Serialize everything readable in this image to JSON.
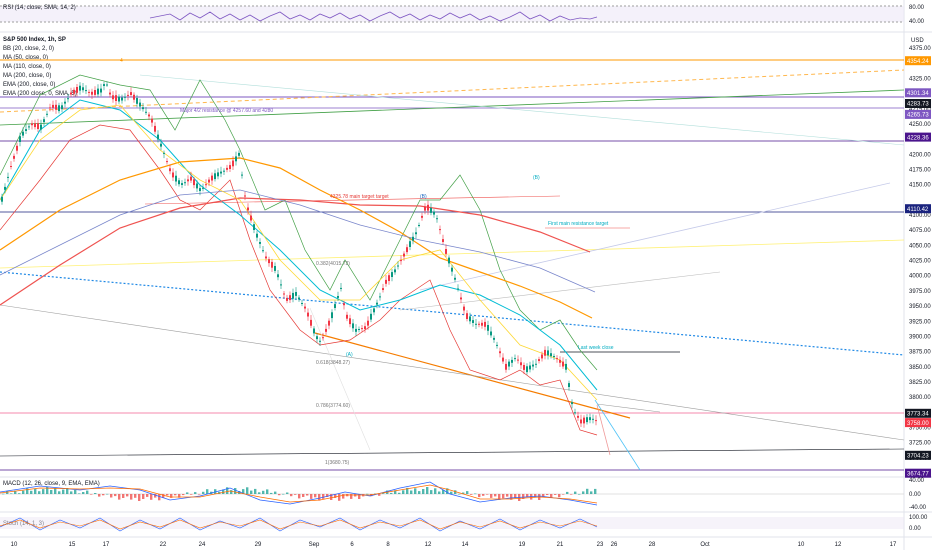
{
  "panes": {
    "rsi": {
      "label": "RSI (14, close, SMA, 14, 2)",
      "ticks": [
        "80.00",
        "40.00"
      ]
    },
    "macd": {
      "label": "MACD (12, 26, close, 9, EMA, EMA)",
      "ticks": [
        "40.00",
        "0.00",
        "-40.00"
      ]
    },
    "stoch": {
      "label": "Stoch (14, 1, 3)",
      "ticks": [
        "100.00",
        "0.00"
      ]
    }
  },
  "main": {
    "title": "S&P 500 Index, 1h, SP",
    "indicators": [
      "BB (20, close, 2, 0)",
      "MA (50, close, 0)",
      "MA (110, close, 0)",
      "MA (200, close, 0)",
      "EMA (200, close, 0)",
      "EMA (200 close, 0, SMA, 5)"
    ],
    "currency": "USD"
  },
  "annotations": {
    "wave_4": "4",
    "wave_B_top": "(B)",
    "wave_B_right": "(B)",
    "wave_A": "(A)",
    "first_target": "First main resistance target",
    "last_week_close": "Last week close",
    "fib_0382": "0.382(4015.72)",
    "fib_0618": "0.618(3848.27)",
    "fib_0786": "0.786(3774.60)",
    "fib_1": "1(3680.75)",
    "major_resistance": "Major 4/2 resistance @ 4257.60 and 4280",
    "top_label": "4325.78 main target target"
  },
  "colors": {
    "candle_up": "#089981",
    "candle_down": "#f23645",
    "bb_basis": "#2962ff",
    "ma50": "#ff9800",
    "ma110": "#f23645",
    "ma200": "#00bcd4",
    "ema200": "#7e57c2",
    "rsi": "#7e57c2",
    "macd_line": "#2962ff",
    "signal_line": "#ff6d00"
  },
  "chart_data": {
    "type": "candlestick",
    "title": "S&P 500 Index, 1h, SP",
    "x_axis_labels": [
      "10",
      "15",
      "17",
      "22",
      "24",
      "29",
      "Sep",
      "6",
      "8",
      "12",
      "14",
      "19",
      "21",
      "23",
      "26",
      "28",
      "Oct",
      "10",
      "12",
      "17"
    ],
    "y_axis_labels": [
      "4375.00",
      "4325.00",
      "4300.00",
      "4275.00",
      "4250.00",
      "4200.00",
      "4175.00",
      "4150.00",
      "4100.00",
      "4075.00",
      "4050.00",
      "4025.00",
      "4000.00",
      "3975.00",
      "3950.00",
      "3925.00",
      "3900.00",
      "3875.00",
      "3850.00",
      "3825.00",
      "3800.00",
      "3775.00",
      "3750.00",
      "3725.00",
      "3700.00"
    ],
    "ylim": [
      3680,
      4385
    ],
    "price_tags": [
      {
        "value": "4354.24",
        "color": "#ff9800"
      },
      {
        "value": "4301.34",
        "color": "#7e57c2"
      },
      {
        "value": "4283.73",
        "color": "#131722"
      },
      {
        "value": "4265.73",
        "color": "#7e57c2"
      },
      {
        "value": "4228.36",
        "color": "#4a148c"
      },
      {
        "value": "4110.42",
        "color": "#1a237e"
      },
      {
        "value": "3773.34",
        "color": "#131722"
      },
      {
        "value": "3758.00",
        "color": "#f23645"
      },
      {
        "value": "3704.23",
        "color": "#131722"
      },
      {
        "value": "3674.77",
        "color": "#4a148c"
      }
    ],
    "price_path": [
      [
        0,
        4120
      ],
      [
        10,
        4180
      ],
      [
        20,
        4230
      ],
      [
        30,
        4250
      ],
      [
        40,
        4245
      ],
      [
        50,
        4280
      ],
      [
        60,
        4275
      ],
      [
        70,
        4300
      ],
      [
        80,
        4310
      ],
      [
        90,
        4300
      ],
      [
        100,
        4305
      ],
      [
        105,
        4320
      ],
      [
        110,
        4295
      ],
      [
        120,
        4290
      ],
      [
        130,
        4300
      ],
      [
        140,
        4280
      ],
      [
        150,
        4260
      ],
      [
        160,
        4215
      ],
      [
        170,
        4170
      ],
      [
        180,
        4150
      ],
      [
        190,
        4160
      ],
      [
        200,
        4140
      ],
      [
        210,
        4160
      ],
      [
        220,
        4170
      ],
      [
        230,
        4180
      ],
      [
        238,
        4200
      ],
      [
        245,
        4120
      ],
      [
        255,
        4070
      ],
      [
        265,
        4030
      ],
      [
        275,
        4010
      ],
      [
        285,
        3960
      ],
      [
        295,
        3970
      ],
      [
        305,
        3945
      ],
      [
        315,
        3900
      ],
      [
        320,
        3890
      ],
      [
        330,
        3930
      ],
      [
        340,
        3980
      ],
      [
        345,
        3935
      ],
      [
        355,
        3910
      ],
      [
        365,
        3915
      ],
      [
        375,
        3950
      ],
      [
        385,
        3990
      ],
      [
        395,
        4010
      ],
      [
        405,
        4040
      ],
      [
        415,
        4070
      ],
      [
        425,
        4115
      ],
      [
        435,
        4100
      ],
      [
        445,
        4040
      ],
      [
        455,
        3990
      ],
      [
        465,
        3935
      ],
      [
        475,
        3920
      ],
      [
        485,
        3920
      ],
      [
        495,
        3890
      ],
      [
        505,
        3850
      ],
      [
        515,
        3865
      ],
      [
        525,
        3845
      ],
      [
        535,
        3855
      ],
      [
        545,
        3875
      ],
      [
        555,
        3865
      ],
      [
        565,
        3850
      ],
      [
        572,
        3780
      ],
      [
        580,
        3760
      ],
      [
        590,
        3765
      ],
      [
        597,
        3760
      ]
    ]
  }
}
